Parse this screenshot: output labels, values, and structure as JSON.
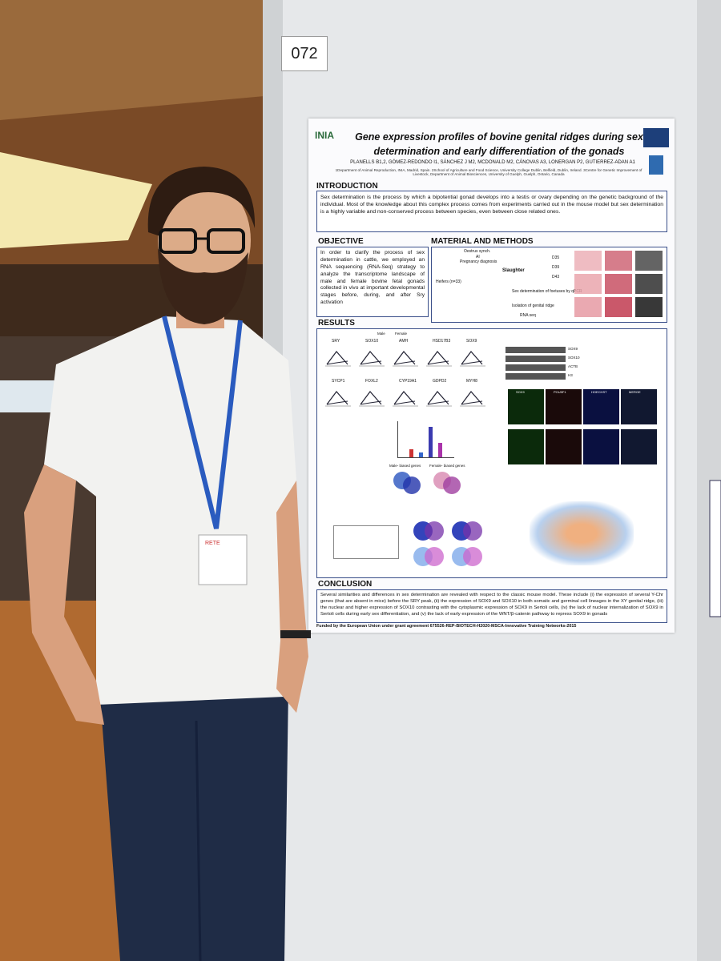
{
  "board_number": "072",
  "badge": "RETE",
  "poster": {
    "logo": "INIA",
    "title": "Gene expression profiles of bovine genital ridges during sex determination and early differentiation of the gonads",
    "authors": "PLANELLS B1,2, GÓMEZ-REDONDO I1, SÁNCHEZ J M2, MCDONALD M2, CÁNOVAS A3, LONERGAN P2, GUTIERREZ-ADAN A1",
    "affiliations": "1Department of Animal Reproduction, INIA, Madrid, Spain. 2School of Agriculture and Food Science, University College Dublin, Belfield, Dublin, Ireland. 3Centre for Genetic Improvement of Livestock, Department of Animal Biosciences, University of Guelph, Guelph, Ontario, Canada",
    "introduction": {
      "heading": "INTRODUCTION",
      "text": "Sex determination is the process by which a bipotential gonad develops into a testis or ovary depending on the genetic background of the individual. Most of the knowledge about this complex process comes from experiments carried out in the mouse model but sex determination is a highly variable and non-conserved process between species, even between close related ones."
    },
    "objective": {
      "heading": "OBJECTIVE",
      "text": "In order to clarify the process of sex determination in cattle, we employed an RNA sequencing (RNA-Seq) strategy to analyze the transcriptome landscape of male and female bovine fetal gonads collected in vivo at important developmental stages before, during, and after Sry activation"
    },
    "methods": {
      "heading": "MATERIAL AND METHODS",
      "steps": [
        "Oestrus synch.",
        "AI",
        "Pregnancy diagnosis",
        "Heifers (n=33)",
        "Slaughter",
        "D35",
        "D39",
        "D43",
        "Sex determination of foetuses by qPCR",
        "Isolation of genital ridge",
        "RNA seq"
      ]
    },
    "results": {
      "heading": "RESULTS",
      "legend": [
        "Male",
        "Female"
      ],
      "genes": [
        "SRY",
        "SOX10",
        "AMH",
        "HSD17B3",
        "SOX9",
        "SYCP1",
        "FOXL2",
        "CYP19A1",
        "GDPD2",
        "MYH8"
      ],
      "blot_labels": [
        "SOX9",
        "SOX10",
        "ACTB",
        "H3"
      ],
      "image_labels": [
        "SOX9",
        "POU5F1",
        "HOECHST",
        "MERGE"
      ],
      "venn_labels": [
        "Male- biased genes",
        "Female- biased genes"
      ]
    },
    "conclusion": {
      "heading": "CONCLUSION",
      "text": "Several similarities and differences in sex determination are revealed with respect to the classic mouse model. These include (i) the expression of several Y-Chr genes (that are absent in mice) before the SRY peak, (ii) the expression of SOX9 and SOX10 in both somatic and germinal cell lineages in the XY genital ridge, (iii) the nuclear and higher expression of SOX10 contrasting with the cytoplasmic expression of SOX9 in Sertoli cells, (iv) the lack of nuclear internalization of SOX9 in Sertoli cells during early sex differentiation, and (v) the lack of early expression of the WNT/β-catenin pathway to repress SOX9 in gonads"
    },
    "funding": "Funded by the European Union under grant agreement 675526-REP-BIOTECH-H2020-MSCA-Innovative Training Networks-2015"
  }
}
